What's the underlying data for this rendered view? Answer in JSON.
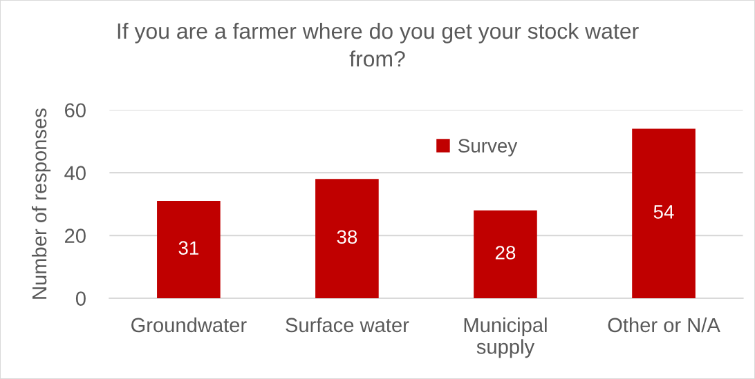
{
  "chart_data": {
    "type": "bar",
    "title": "If you are a farmer where do you get your stock water\nfrom?",
    "ylabel": "Number of responses",
    "categories": [
      "Groundwater",
      "Surface water",
      "Municipal\nsupply",
      "Other or N/A"
    ],
    "series": [
      {
        "name": "Survey",
        "color": "#c00000",
        "values": [
          31,
          38,
          28,
          54
        ]
      }
    ],
    "ylim": [
      0,
      60
    ],
    "yticks": [
      0,
      20,
      40,
      60
    ],
    "grid": "y",
    "legend": "top",
    "data_labels": true
  }
}
